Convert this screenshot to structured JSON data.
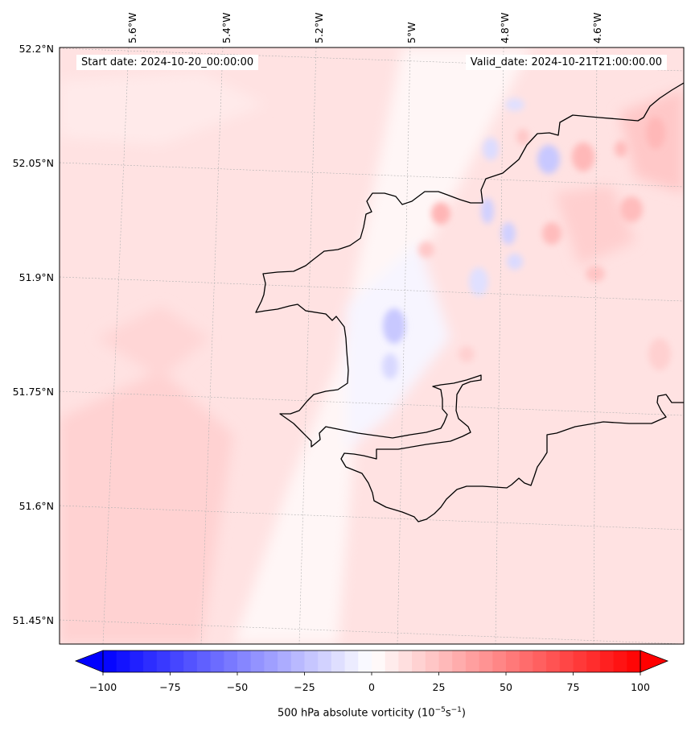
{
  "map": {
    "start_date_label": "Start date: 2024-10-20_00:00:00",
    "valid_date_label": "Valid_date: 2024-10-21T21:00:00.00",
    "lon_ticks": [
      "5.6°W",
      "5.4°W",
      "5.2°W",
      "5°W",
      "4.8°W",
      "4.6°W"
    ],
    "lat_ticks": [
      "52.2°N",
      "52.05°N",
      "51.9°N",
      "51.75°N",
      "51.6°N",
      "51.45°N"
    ],
    "colors": {
      "background_field": "#ffe3e3",
      "coast": "#000000",
      "grid": "#b0b0b0"
    }
  },
  "colorbar": {
    "tick_labels": [
      "−100",
      "−75",
      "−50",
      "−25",
      "0",
      "25",
      "50",
      "75",
      "100"
    ],
    "label_prefix": "500 hPa absolute vorticity (10",
    "label_exp1": "−5",
    "label_mid": "s",
    "label_exp2": "−1",
    "label_suffix": ")",
    "min": -100,
    "max": 100,
    "extend": "both",
    "negative_color": "#0000ff",
    "neutral_color": "#ffffff",
    "positive_color": "#ff0000"
  }
}
